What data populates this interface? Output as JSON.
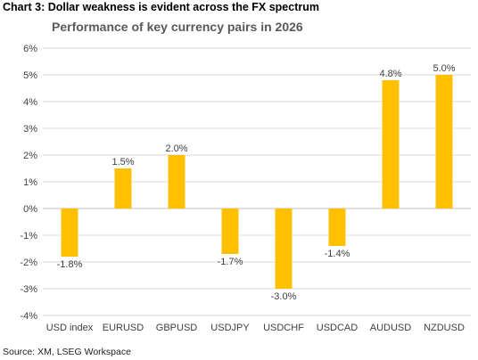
{
  "heading": "Chart 3: Dollar weakness is evident across the FX spectrum",
  "source": "Source: XM, LSEG Workspace",
  "colors": {
    "bar": "#FFC000",
    "grid": "#D9D9D9",
    "zero_line": "#BFBFBF"
  },
  "chart_data": {
    "type": "bar",
    "title": "Performance of key currency pairs in 2026",
    "categories": [
      "USD index",
      "EURUSD",
      "GBPUSD",
      "USDJPY",
      "USDCHF",
      "USDCAD",
      "AUDUSD",
      "NZDUSD"
    ],
    "values": [
      -1.8,
      1.5,
      2.0,
      -1.7,
      -3.0,
      -1.4,
      4.8,
      5.0
    ],
    "data_labels": [
      "-1.8%",
      "1.5%",
      "2.0%",
      "-1.7%",
      "-3.0%",
      "-1.4%",
      "4.8%",
      "5.0%"
    ],
    "yticks": [
      "6%",
      "5%",
      "4%",
      "3%",
      "2%",
      "1%",
      "0%",
      "-1%",
      "-2%",
      "-3%",
      "-4%"
    ],
    "ylim": [
      -4,
      6
    ],
    "xlabel": "",
    "ylabel": "",
    "grid": true,
    "legend": "none"
  }
}
